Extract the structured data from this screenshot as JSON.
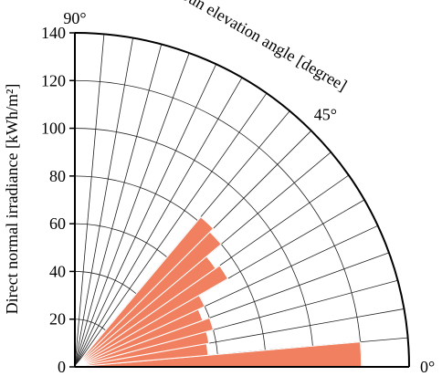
{
  "chart_data": {
    "type": "polar-bar",
    "ylabel": "Direct normal irradiance [kWh/m²]",
    "angle_label": "Sun elevation angle [degree]",
    "rlim": [
      0,
      140
    ],
    "r_ticks": [
      "0",
      "20",
      "40",
      "60",
      "80",
      "100",
      "120",
      "140"
    ],
    "r_tick_values": [
      0,
      20,
      40,
      60,
      80,
      100,
      120,
      140
    ],
    "angle_ticks": [
      {
        "label": "0°",
        "deg": 0
      },
      {
        "label": "45°",
        "deg": 45
      },
      {
        "label": "90°",
        "deg": 90
      }
    ],
    "grid": true,
    "bar_color": "#f08060",
    "bins_deg": [
      5,
      10,
      15,
      20,
      25,
      30,
      35,
      40,
      45,
      50,
      55,
      60,
      65,
      70,
      75,
      80,
      85,
      90
    ],
    "values": [
      120,
      56,
      57,
      60,
      57,
      60,
      74,
      72,
      80,
      82,
      0,
      0,
      0,
      0,
      0,
      0,
      0,
      0
    ]
  }
}
